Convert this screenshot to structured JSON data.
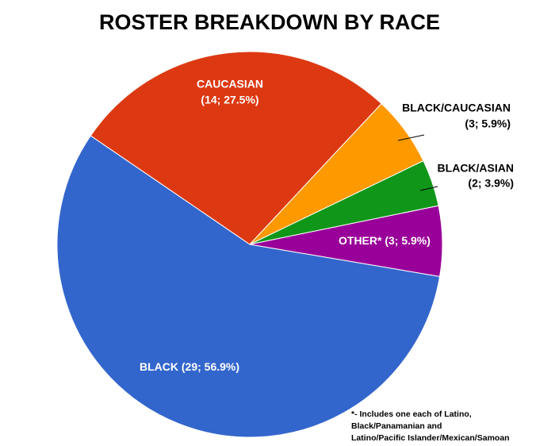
{
  "chart_data": {
    "type": "pie",
    "title": "ROSTER BREAKDOWN BY RACE",
    "categories": [
      "CAUCASIAN",
      "BLACK/CAUCASIAN",
      "BLACK/ASIAN",
      "OTHER*",
      "BLACK"
    ],
    "values": [
      14,
      3,
      2,
      3,
      29
    ],
    "value_labels": [
      "(14; 27.5%)",
      "(3; 5.9%)",
      "(2; 3.9%)",
      "(3; 5.9%)",
      "(29; 56.9%)"
    ],
    "colors": [
      "#dc3912",
      "#ff9900",
      "#109618",
      "#990099",
      "#3366cc"
    ],
    "note": [
      "*- Includes one each of Latino,",
      "Black/Panamanian and",
      "Latino/Pacific Islander/Mexican/Samoan"
    ]
  }
}
